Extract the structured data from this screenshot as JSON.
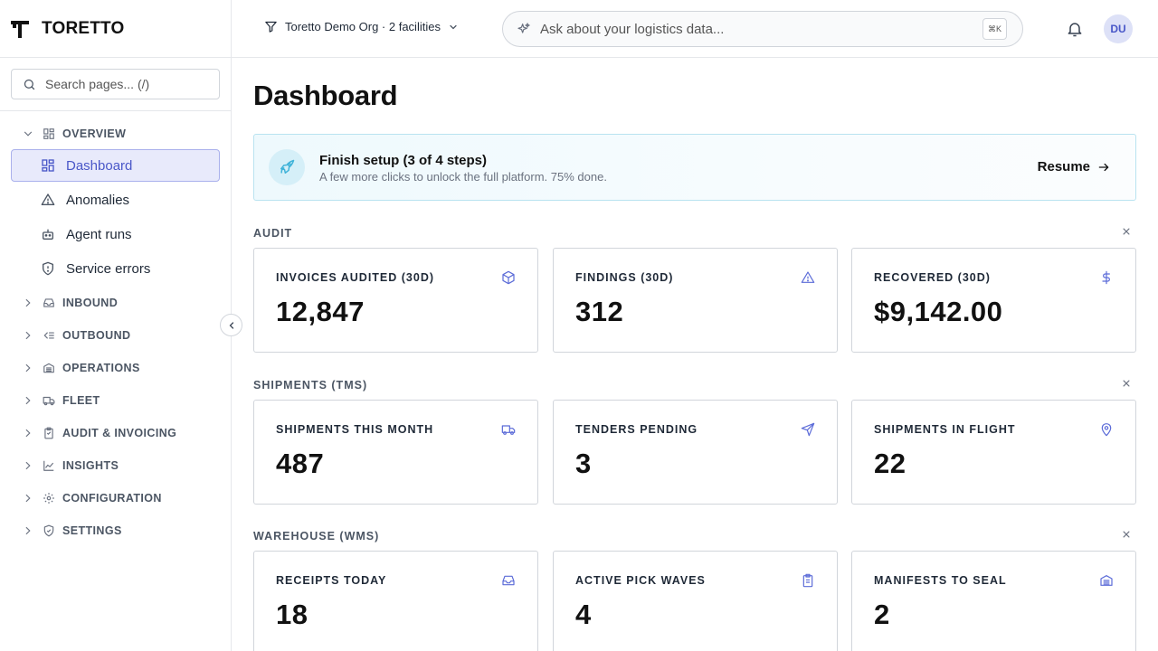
{
  "brand": {
    "name": "TORETTO"
  },
  "sidebar": {
    "search_placeholder": "Search pages...  (/)",
    "overview": {
      "label": "OVERVIEW",
      "items": [
        {
          "label": "Dashboard",
          "icon": "dashboard-icon",
          "active": true
        },
        {
          "label": "Anomalies",
          "icon": "warning-icon",
          "active": false
        },
        {
          "label": "Agent runs",
          "icon": "bot-icon",
          "active": false
        },
        {
          "label": "Service errors",
          "icon": "shield-alert-icon",
          "active": false
        }
      ]
    },
    "sections": [
      {
        "label": "INBOUND",
        "icon": "inbox-icon"
      },
      {
        "label": "OUTBOUND",
        "icon": "outbound-icon"
      },
      {
        "label": "OPERATIONS",
        "icon": "warehouse-icon"
      },
      {
        "label": "FLEET",
        "icon": "truck-icon"
      },
      {
        "label": "AUDIT & INVOICING",
        "icon": "clipboard-icon"
      },
      {
        "label": "INSIGHTS",
        "icon": "chart-icon"
      },
      {
        "label": "CONFIGURATION",
        "icon": "gear-icon"
      },
      {
        "label": "SETTINGS",
        "icon": "shield-check-icon"
      }
    ]
  },
  "topbar": {
    "org_selector": "Toretto Demo Org · 2 facilities",
    "ask_placeholder": "Ask about your logistics data...",
    "shortcut": "⌘K",
    "avatar_initials": "DU"
  },
  "main": {
    "title": "Dashboard",
    "setup_banner": {
      "title": "Finish setup (3 of 4 steps)",
      "subtitle": "A few more clicks to unlock the full platform. 75% done.",
      "action": "Resume",
      "progress_percent": 75
    },
    "groups": [
      {
        "label": "AUDIT",
        "cards": [
          {
            "label": "INVOICES AUDITED (30D)",
            "value": "12,847",
            "icon": "box-icon"
          },
          {
            "label": "FINDINGS (30D)",
            "value": "312",
            "icon": "warning-icon"
          },
          {
            "label": "RECOVERED (30D)",
            "value": "$9,142.00",
            "icon": "dollar-icon"
          }
        ]
      },
      {
        "label": "SHIPMENTS (TMS)",
        "cards": [
          {
            "label": "SHIPMENTS THIS MONTH",
            "value": "487",
            "icon": "truck-icon"
          },
          {
            "label": "TENDERS PENDING",
            "value": "3",
            "icon": "send-icon"
          },
          {
            "label": "SHIPMENTS IN FLIGHT",
            "value": "22",
            "icon": "map-pin-icon"
          }
        ]
      },
      {
        "label": "WAREHOUSE (WMS)",
        "cards": [
          {
            "label": "RECEIPTS TODAY",
            "value": "18",
            "icon": "inbox-icon"
          },
          {
            "label": "ACTIVE PICK WAVES",
            "value": "4",
            "icon": "clipboard-icon"
          },
          {
            "label": "MANIFESTS TO SEAL",
            "value": "2",
            "icon": "warehouse-icon"
          }
        ]
      }
    ]
  },
  "colors": {
    "accent": "#4957c8",
    "active_bg": "#e8eafb",
    "banner_border": "#b9e3f0",
    "banner_icon": "#3fb3d9"
  }
}
